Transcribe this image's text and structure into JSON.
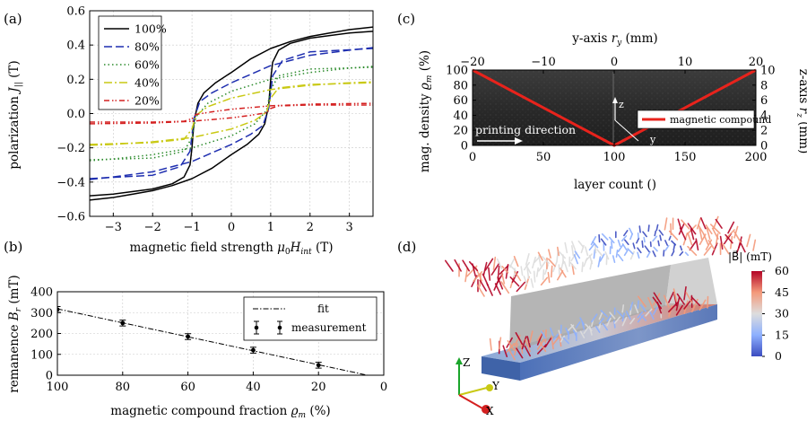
{
  "panels": {
    "a": {
      "label": "(a)"
    },
    "b": {
      "label": "(b)"
    },
    "c": {
      "label": "(c)"
    },
    "d": {
      "label": "(d)"
    }
  },
  "chart_data": [
    {
      "panel": "a",
      "type": "line",
      "xlabel": "magnetic field strength μ₀H_int (T)",
      "ylabel": "polarization J∥ (T)",
      "xlim": [
        -3.6,
        3.6
      ],
      "ylim": [
        -0.6,
        0.6
      ],
      "xticks": [
        -3,
        -2,
        -1,
        0,
        1,
        2,
        3
      ],
      "yticks": [
        -0.6,
        -0.4,
        -0.2,
        0.0,
        0.2,
        0.4,
        0.6
      ],
      "ytick_labels": [
        "−0.6",
        "−0.4",
        "−0.2",
        "0.0",
        "0.2",
        "0.4",
        "0.6"
      ],
      "xtick_labels": [
        "−3",
        "−2",
        "−1",
        "0",
        "1",
        "2",
        "3"
      ],
      "legend_position": "top-left",
      "series": [
        {
          "name": "100%",
          "color": "#000000",
          "dash": "solid",
          "js": 0.52,
          "hc": 0.98,
          "width": 0.3,
          "sat_ratio": 0.5,
          "upper_x": [
            -3.6,
            -3.0,
            -2.0,
            -1.5,
            -1.2,
            -1.05,
            -1.0,
            -0.95,
            -0.85,
            -0.7,
            -0.4,
            0.0,
            0.5,
            1.0,
            1.5,
            2.0,
            2.5,
            3.0,
            3.6
          ],
          "upper_y": [
            -0.48,
            -0.47,
            -0.44,
            -0.41,
            -0.37,
            -0.3,
            -0.2,
            -0.05,
            0.06,
            0.12,
            0.18,
            0.24,
            0.32,
            0.38,
            0.42,
            0.45,
            0.47,
            0.49,
            0.505
          ]
        },
        {
          "name": "80%",
          "color": "#1f2fb0",
          "dash": "long",
          "js": 0.395,
          "hc": 0.98,
          "width": 0.3,
          "sat_ratio": 0.5,
          "upper_x": [
            -3.6,
            -2.0,
            -1.3,
            -1.05,
            -0.95,
            -0.8,
            -0.5,
            0.0,
            1.0,
            2.0,
            3.0,
            3.6
          ],
          "upper_y": [
            -0.38,
            -0.36,
            -0.31,
            -0.22,
            -0.03,
            0.07,
            0.12,
            0.18,
            0.28,
            0.34,
            0.37,
            0.385
          ]
        },
        {
          "name": "60%",
          "color": "#2a8a2a",
          "dash": "dot",
          "js": 0.285,
          "hc": 0.98,
          "width": 0.3,
          "sat_ratio": 0.5,
          "upper_x": [
            -3.6,
            -2.0,
            -1.2,
            -1.0,
            -0.9,
            -0.6,
            0.0,
            1.0,
            2.0,
            3.0,
            3.6
          ],
          "upper_y": [
            -0.27,
            -0.26,
            -0.22,
            -0.14,
            -0.02,
            0.06,
            0.13,
            0.2,
            0.24,
            0.265,
            0.275
          ]
        },
        {
          "name": "40%",
          "color": "#c9c914",
          "dash": "dashdot",
          "js": 0.19,
          "hc": 0.98,
          "width": 0.3,
          "sat_ratio": 0.5,
          "upper_x": [
            -3.6,
            -2.0,
            -1.2,
            -1.0,
            -0.9,
            -0.6,
            0.0,
            1.0,
            2.0,
            3.0,
            3.6
          ],
          "upper_y": [
            -0.18,
            -0.17,
            -0.15,
            -0.09,
            -0.01,
            0.04,
            0.09,
            0.14,
            0.165,
            0.18,
            0.185
          ]
        },
        {
          "name": "20%",
          "color": "#d42020",
          "dash": "dashdotdot",
          "js": 0.06,
          "hc": 0.98,
          "width": 0.3,
          "sat_ratio": 0.5,
          "upper_x": [
            -3.6,
            -2.0,
            -1.2,
            -1.0,
            -0.9,
            -0.5,
            0.0,
            1.0,
            2.0,
            3.6
          ],
          "upper_y": [
            -0.05,
            -0.05,
            -0.045,
            -0.03,
            -0.005,
            0.01,
            0.025,
            0.045,
            0.055,
            0.06
          ]
        }
      ]
    },
    {
      "panel": "b",
      "type": "scatter",
      "xlabel": "magnetic compound fraction ϱ_m (%)",
      "ylabel": "remanence B_r (mT)",
      "xlim": [
        100,
        0
      ],
      "ylim": [
        0,
        400
      ],
      "xticks": [
        100,
        80,
        60,
        40,
        20,
        0
      ],
      "yticks": [
        0,
        100,
        200,
        300,
        400
      ],
      "legend_position": "top-right",
      "series": [
        {
          "name": "measurement",
          "color": "#000000",
          "x": [
            100,
            80,
            60,
            40,
            20
          ],
          "y": [
            315,
            250,
            185,
            120,
            48
          ],
          "err": [
            14,
            14,
            14,
            14,
            14
          ]
        },
        {
          "name": "fit",
          "color": "#000000",
          "dash": "dashdot",
          "x": [
            100,
            5
          ],
          "y": [
            318,
            0
          ]
        }
      ]
    },
    {
      "panel": "c",
      "type": "line",
      "xlabel": "layer count ()",
      "ylabel": "mag. density ϱ_m (%)",
      "top_xlabel": "y-axis r_y (mm)",
      "right_ylabel": "z-axis r_z (mm)",
      "xlim": [
        0,
        200
      ],
      "ylim": [
        0,
        100
      ],
      "top_xlim": [
        -20,
        20
      ],
      "right_ylim": [
        0,
        10
      ],
      "xticks": [
        0,
        50,
        100,
        150,
        200
      ],
      "yticks": [
        0,
        20,
        40,
        60,
        80,
        100
      ],
      "top_xticks": [
        -20,
        -10,
        0,
        10,
        20
      ],
      "top_xtick_labels": [
        "−20",
        "−10",
        "0",
        "10",
        "20"
      ],
      "right_yticks": [
        0,
        2,
        4,
        6,
        8,
        10
      ],
      "legend_position": "right",
      "annotations": {
        "printing_direction": "printing direction",
        "axis_z": "z",
        "axis_y": "y"
      },
      "series": [
        {
          "name": "magnetic compound",
          "color": "#e8231c",
          "x": [
            0,
            100,
            200
          ],
          "y": [
            100,
            0,
            100
          ]
        }
      ]
    }
  ],
  "panel_d": {
    "colorbar": {
      "title": "|B⃗| (mT)",
      "min": 0,
      "max": 60,
      "ticks": [
        0,
        15,
        30,
        45,
        60
      ],
      "colors": [
        "#3b4cc0",
        "#8db0fe",
        "#dddddd",
        "#f49a7b",
        "#b40426"
      ]
    },
    "triad": {
      "x": "X",
      "y": "Y",
      "z": "Z"
    }
  }
}
